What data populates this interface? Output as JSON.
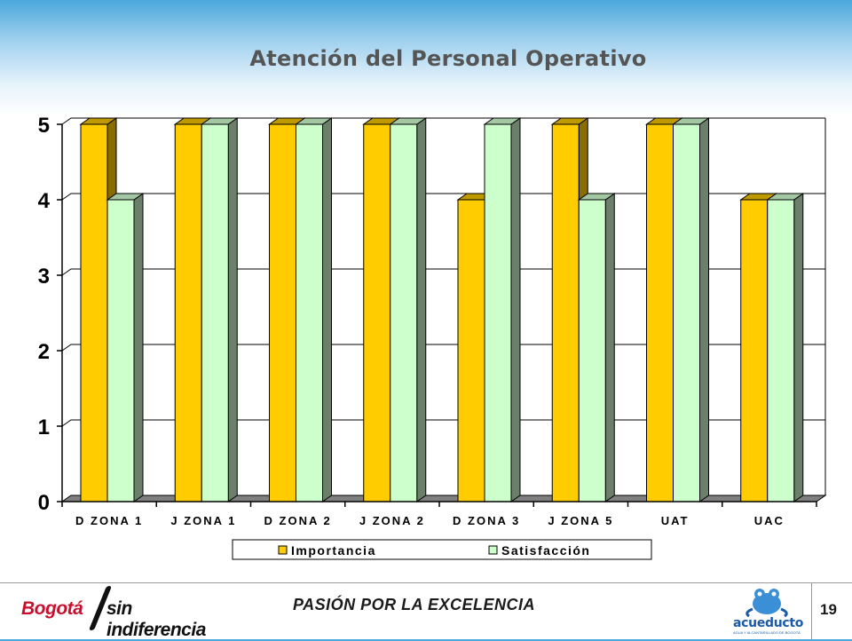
{
  "slide": {
    "title": "Atención del Personal Operativo",
    "slogan": "PASIÓN POR LA EXCELENCIA",
    "page_number": "19",
    "city_logo_text": [
      "Bogotá",
      "sin indiferencia"
    ],
    "utility_logo_text": "acueducto",
    "utility_logo_subtext": "AGUA Y ALCANTARILLADO DE BOGOTÁ"
  },
  "chart_data": {
    "type": "bar",
    "title": "Atención del Personal Operativo",
    "categories": [
      "D ZONA 1",
      "J ZONA 1",
      "D ZONA 2",
      "J ZONA 2",
      "D ZONA 3",
      "J ZONA 5",
      "UAT",
      "UAC"
    ],
    "series": [
      {
        "name": "Importancia",
        "values": [
          5,
          5,
          5,
          5,
          4,
          5,
          5,
          4
        ],
        "color": "#ffcc00",
        "side_color": "#8a6d00",
        "top_color": "#bf9900"
      },
      {
        "name": "Satisfacción",
        "values": [
          4,
          5,
          5,
          5,
          5,
          4,
          5,
          4
        ],
        "color": "#ccffcc",
        "side_color": "#6b7f6b",
        "top_color": "#a3c7a3"
      }
    ],
    "yticks": [
      0,
      1,
      2,
      3,
      4,
      5
    ],
    "ylim": [
      0,
      5
    ],
    "xlabel": "",
    "ylabel": "",
    "grid": true,
    "legend_position": "bottom",
    "three_d": true
  }
}
